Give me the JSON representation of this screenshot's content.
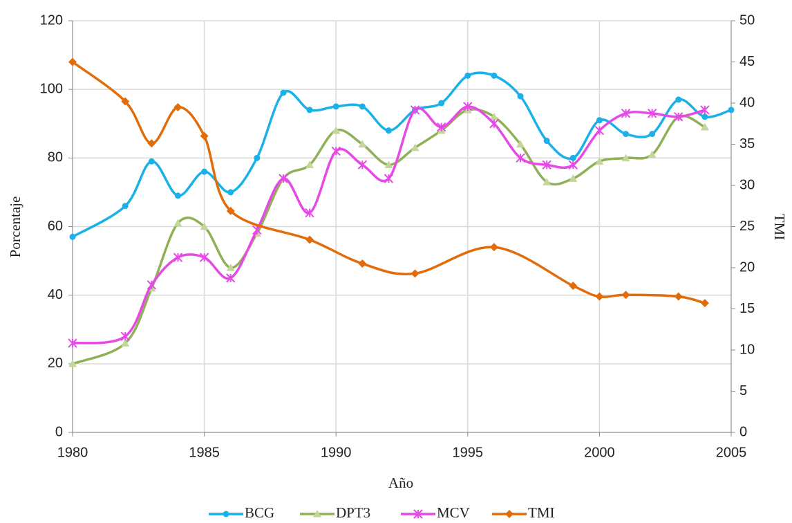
{
  "chart_data": {
    "type": "line",
    "x_label": "Año",
    "y_label": "Porcentaje",
    "y2_label": "TMI",
    "xlim": [
      1980,
      2005
    ],
    "xticks": [
      1980,
      1985,
      1990,
      1995,
      2000,
      2005
    ],
    "ylim": [
      0,
      120
    ],
    "yticks": [
      0,
      20,
      40,
      60,
      80,
      100,
      120
    ],
    "y2lim": [
      0,
      50
    ],
    "y2ticks": [
      0,
      5,
      10,
      15,
      20,
      25,
      30,
      35,
      40,
      45,
      50
    ],
    "grid": true,
    "smooth": true,
    "legend": "bottom",
    "series": [
      {
        "name": "BCG",
        "color": "#1ab0e8",
        "marker": "circle",
        "x": [
          1980,
          1982,
          1983,
          1984,
          1985,
          1986,
          1987,
          1988,
          1989,
          1990,
          1991,
          1992,
          1993,
          1994,
          1995,
          1996,
          1997,
          1998,
          1999,
          2000,
          2001,
          2002,
          2003,
          2004,
          2005
        ],
        "values": [
          57,
          66,
          79,
          69,
          76,
          70,
          80,
          99,
          94,
          95,
          95,
          88,
          94,
          96,
          104,
          104,
          98,
          85,
          80,
          91,
          87,
          87,
          97,
          92,
          94
        ]
      },
      {
        "name": "DPT3",
        "color": "#8fb155",
        "marker": "triangle",
        "x": [
          1980,
          1982,
          1983,
          1984,
          1985,
          1986,
          1987,
          1988,
          1989,
          1990,
          1991,
          1992,
          1993,
          1994,
          1995,
          1996,
          1997,
          1998,
          1999,
          2000,
          2001,
          2002,
          2003,
          2004
        ],
        "values": [
          20,
          26,
          42,
          61,
          60,
          48,
          58,
          74,
          78,
          88,
          84,
          78,
          83,
          88,
          94,
          92,
          84,
          73,
          74,
          79,
          80,
          81,
          92,
          89
        ]
      },
      {
        "name": "MCV",
        "color": "#e649e6",
        "marker": "asterisk",
        "x": [
          1980,
          1982,
          1983,
          1984,
          1985,
          1986,
          1987,
          1988,
          1989,
          1990,
          1991,
          1992,
          1993,
          1994,
          1995,
          1996,
          1997,
          1998,
          1999,
          2000,
          2001,
          2002,
          2003,
          2004
        ],
        "values": [
          26,
          28,
          43,
          51,
          51,
          45,
          59,
          74,
          64,
          82,
          78,
          74,
          94,
          89,
          95,
          90,
          80,
          78,
          78,
          88,
          93,
          93,
          92,
          94
        ]
      },
      {
        "name": "TMI",
        "color": "#e36c0a",
        "marker": "diamond",
        "axis": "y2",
        "x": [
          1980,
          1982,
          1983,
          1984,
          1985,
          1986,
          1989,
          1991,
          1993,
          1996,
          1999,
          2000,
          2001,
          2003,
          2004
        ],
        "values": [
          45,
          40.2,
          35.1,
          39.5,
          36,
          26.9,
          23.4,
          20.5,
          19.3,
          22.5,
          17.8,
          16.5,
          16.7,
          16.5,
          15.7
        ]
      }
    ]
  }
}
